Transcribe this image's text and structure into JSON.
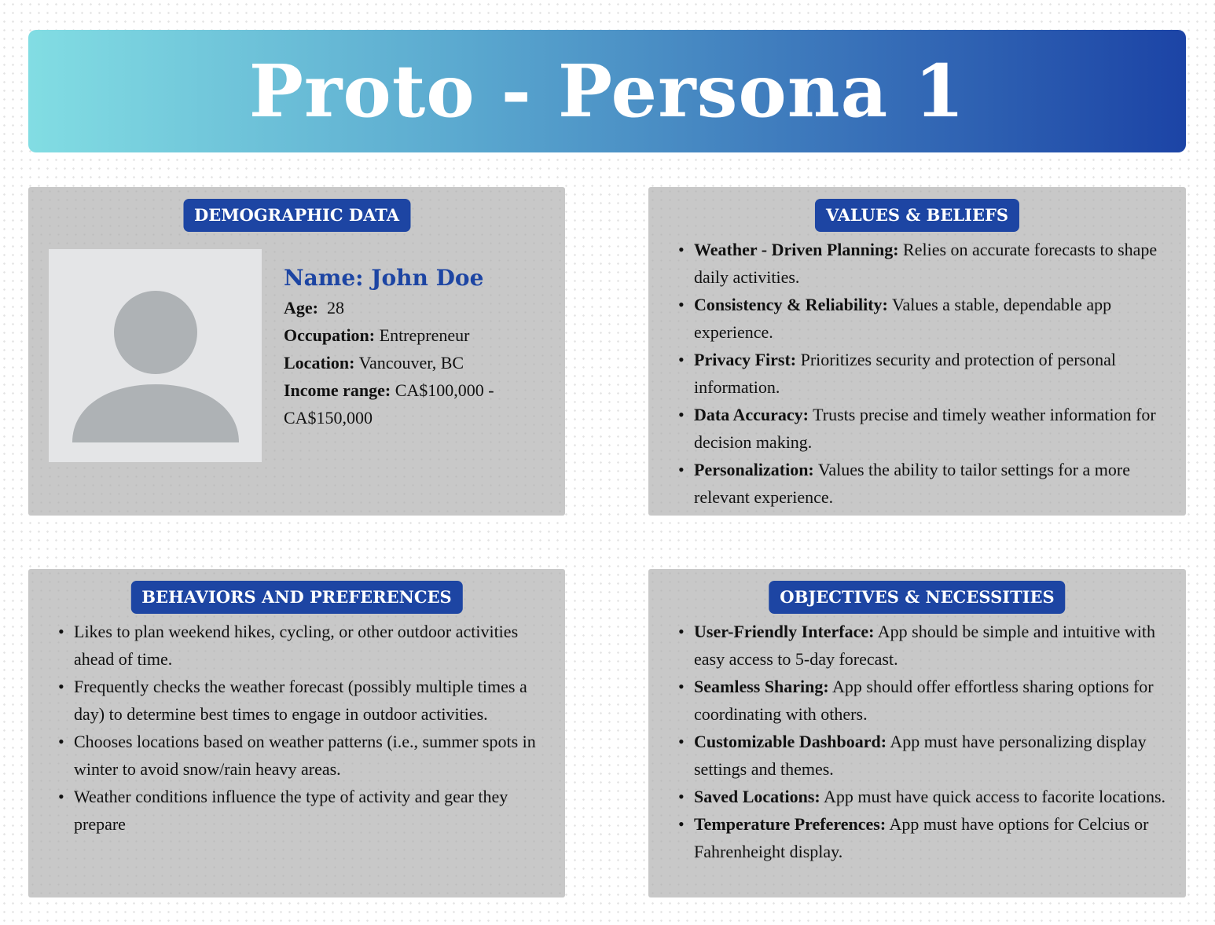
{
  "title": "Proto - Persona 1",
  "colors": {
    "accent": "#1d45a3",
    "panel": "#c8c8c8",
    "banner_start": "#82dde3",
    "banner_end": "#1c44a6"
  },
  "demographic": {
    "heading": "DEMOGRAPHIC DATA",
    "avatar_icon": "user-silhouette-icon",
    "name": "Name: John Doe",
    "age_label": "Age:",
    "age_value": "28",
    "occupation_label": "Occupation:",
    "occupation_value": "Entrepreneur",
    "location_label": "Location:",
    "location_value": "Vancouver, BC",
    "income_label": "Income range:",
    "income_value_1": "CA$100,000 -",
    "income_value_2": "CA$150,000"
  },
  "values": {
    "heading": "VALUES & BELIEFS",
    "items": [
      {
        "label": "Weather - Driven Planning:",
        "text": "Relies on accurate forecasts to shape daily activities."
      },
      {
        "label": "Consistency & Reliability:",
        "text": "Values a stable, dependable app experience."
      },
      {
        "label": "Privacy First:",
        "text": "Prioritizes security and protection of personal information."
      },
      {
        "label": "Data Accuracy:",
        "text": "Trusts precise and timely weather information for decision making."
      },
      {
        "label": "Personalization:",
        "text": "Values the ability to tailor settings for a more relevant experience."
      }
    ]
  },
  "behaviors": {
    "heading": "BEHAVIORS AND PREFERENCES",
    "items": [
      {
        "text": "Likes to plan weekend hikes, cycling, or other outdoor activities ahead of time."
      },
      {
        "text": "Frequently checks the weather forecast (possibly multiple times a day) to determine best times to engage in outdoor activities."
      },
      {
        "text": "Chooses locations based on weather patterns (i.e., summer spots in winter to avoid snow/rain heavy areas."
      },
      {
        "text": "Weather conditions influence the type of activity and gear they prepare"
      }
    ]
  },
  "objectives": {
    "heading": "OBJECTIVES & NECESSITIES",
    "items": [
      {
        "label": "User-Friendly Interface:",
        "text": "App should be simple and intuitive with easy access to 5-day forecast."
      },
      {
        "label": "Seamless Sharing:",
        "text": "App should offer effortless sharing options for coordinating with others."
      },
      {
        "label": "Customizable Dashboard:",
        "text": "App must have personalizing display settings and themes."
      },
      {
        "label": "Saved Locations:",
        "text": "App must have quick access to facorite locations."
      },
      {
        "label": "Temperature Preferences:",
        "text": "App must have options for Celcius or Fahrenheight display."
      }
    ]
  }
}
